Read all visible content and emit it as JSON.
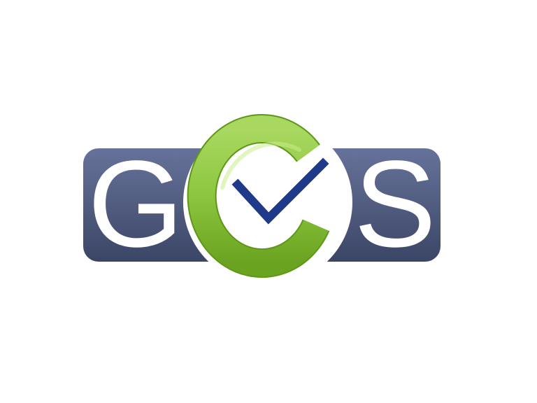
{
  "logo": {
    "letters": [
      "G",
      "C",
      "S"
    ],
    "icon": "checkmark-icon",
    "colors": {
      "bar": "#4a5577",
      "bar_light": "#66729a",
      "bar_dark": "#3b4566",
      "letter_fill": "#ffffff",
      "c_green": "#8cc63f",
      "c_green_light": "#b7e06a",
      "c_green_dark": "#6aa31f",
      "check": "#1f3a8a",
      "background": "#ffffff"
    }
  }
}
